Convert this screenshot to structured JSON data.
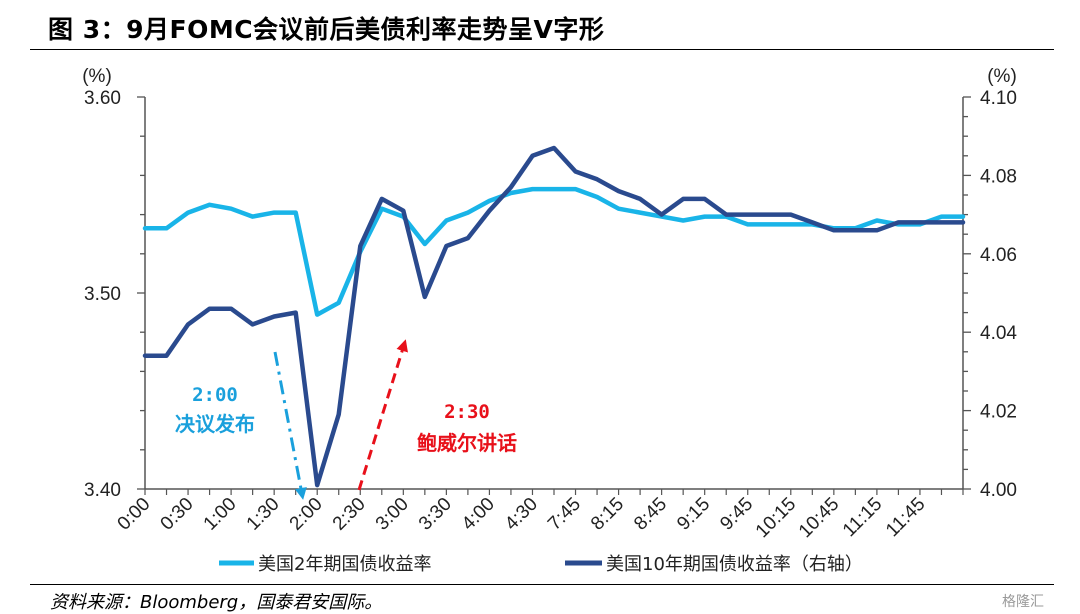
{
  "figure_title": "图 3：9月FOMC会议前后美债利率走势呈V字形",
  "source_note": "资料来源：Bloomberg，国泰君安国际。",
  "watermark": "格隆汇",
  "chart_data": {
    "type": "line",
    "title": "",
    "left_axis": {
      "unit": "(%)",
      "ylim": [
        3.4,
        3.6
      ],
      "ticks": [
        "3.60",
        "3.50",
        "3.40"
      ],
      "tick_values": [
        3.6,
        3.5,
        3.4
      ]
    },
    "right_axis": {
      "unit": "(%)",
      "ylim": [
        4.0,
        4.1
      ],
      "ticks": [
        "4.10",
        "4.08",
        "4.06",
        "4.04",
        "4.02",
        "4.00"
      ],
      "tick_values": [
        4.1,
        4.08,
        4.06,
        4.04,
        4.02,
        4.0
      ]
    },
    "x_ticks": [
      "0:00",
      "0:30",
      "1:00",
      "1:30",
      "2:00",
      "2:30",
      "3:00",
      "3:30",
      "4:00",
      "4:30",
      "7:45",
      "8:15",
      "8:45",
      "9:15",
      "9:45",
      "10:15",
      "10:45",
      "11:15",
      "11:45"
    ],
    "series": [
      {
        "name": "美国2年期国债收益率",
        "axis": "left",
        "color": "#19B4E8",
        "values": [
          3.533,
          3.533,
          3.541,
          3.545,
          3.543,
          3.539,
          3.541,
          3.541,
          3.489,
          3.495,
          3.521,
          3.543,
          3.539,
          3.525,
          3.537,
          3.541,
          3.547,
          3.551,
          3.553,
          3.553,
          3.553,
          3.549,
          3.543,
          3.541,
          3.539,
          3.537,
          3.539,
          3.539,
          3.535,
          3.535,
          3.535,
          3.535,
          3.533,
          3.533,
          3.537,
          3.535,
          3.535,
          3.539,
          3.539
        ]
      },
      {
        "name": "美国10年期国债收益率（右轴）",
        "axis": "right",
        "color": "#2A4A8E",
        "values": [
          4.034,
          4.034,
          4.042,
          4.046,
          4.046,
          4.042,
          4.044,
          4.045,
          4.001,
          4.019,
          4.062,
          4.074,
          4.071,
          4.049,
          4.062,
          4.064,
          4.071,
          4.077,
          4.085,
          4.087,
          4.081,
          4.079,
          4.076,
          4.074,
          4.07,
          4.074,
          4.074,
          4.07,
          4.07,
          4.07,
          4.07,
          4.068,
          4.066,
          4.066,
          4.066,
          4.068,
          4.068,
          4.068,
          4.068
        ]
      }
    ],
    "annotations": [
      {
        "time": "2:00",
        "text": "决议发布",
        "color": "#1AA0DC",
        "style": "dash-dot",
        "direction": "down"
      },
      {
        "time": "2:30",
        "text": "鲍威尔讲话",
        "color": "#E8101A",
        "style": "dashed",
        "direction": "up"
      }
    ],
    "legend_position": "bottom",
    "grid": false
  }
}
